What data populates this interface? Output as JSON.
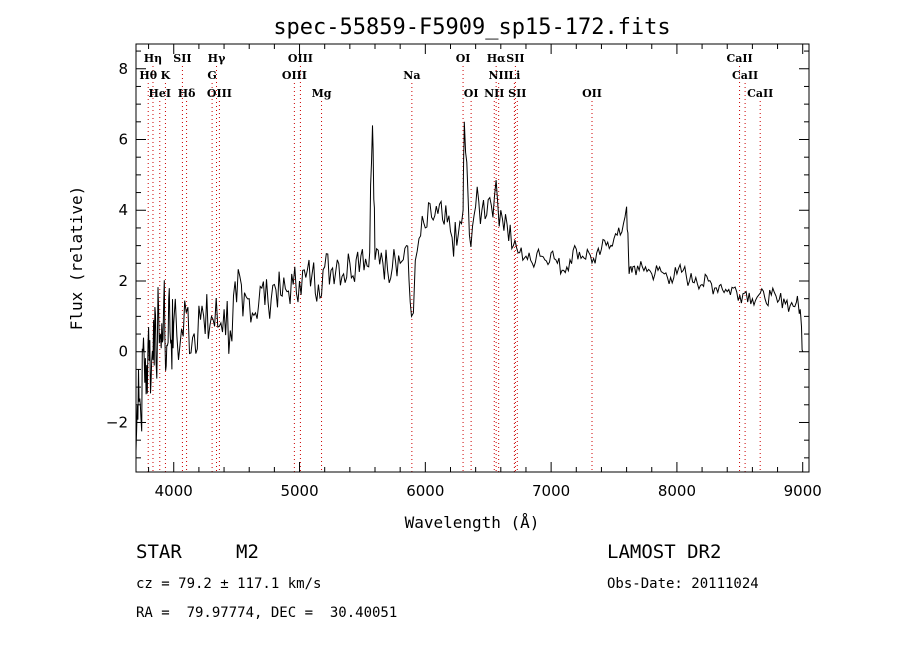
{
  "info": {
    "object_class": "STAR",
    "subclass": "M2",
    "survey": "LAMOST DR2",
    "redshift_line": "cz = 79.2 ± 117.1 km/s",
    "obs_date": "Obs-Date: 20111024",
    "coords": "RA =  79.97774, DEC =  30.40051"
  },
  "chart_data": {
    "type": "line",
    "title": "spec-55859-F5909_sp15-172.fits",
    "xlabel": "Wavelength (Å)",
    "ylabel": "Flux (relative)",
    "xlim": [
      3700,
      9050
    ],
    "ylim": [
      -3.4,
      8.7
    ],
    "xticks": [
      4000,
      5000,
      6000,
      7000,
      8000,
      9000
    ],
    "yticks": [
      -2,
      0,
      2,
      4,
      6,
      8
    ],
    "grid": false,
    "line_color": "#000000",
    "marker_color": "#cc0000",
    "spectrum": {
      "x": [
        3700,
        3720,
        3740,
        3760,
        3780,
        3800,
        3820,
        3840,
        3860,
        3880,
        3900,
        3920,
        3940,
        3960,
        3980,
        4000,
        4050,
        4100,
        4150,
        4200,
        4250,
        4300,
        4350,
        4400,
        4450,
        4500,
        4550,
        4600,
        4650,
        4700,
        4750,
        4800,
        4850,
        4900,
        4950,
        5000,
        5050,
        5100,
        5150,
        5200,
        5250,
        5300,
        5350,
        5400,
        5450,
        5500,
        5550,
        5580,
        5600,
        5650,
        5700,
        5750,
        5800,
        5850,
        5890,
        5950,
        6000,
        6050,
        6100,
        6150,
        6200,
        6250,
        6300,
        6310,
        6350,
        6400,
        6450,
        6500,
        6550,
        6600,
        6650,
        6700,
        6750,
        6800,
        6850,
        6900,
        6950,
        7000,
        7050,
        7100,
        7150,
        7200,
        7250,
        7300,
        7350,
        7400,
        7450,
        7500,
        7550,
        7600,
        7620,
        7650,
        7700,
        7750,
        7800,
        7850,
        7900,
        7950,
        8000,
        8050,
        8100,
        8150,
        8200,
        8250,
        8300,
        8350,
        8400,
        8450,
        8500,
        8550,
        8600,
        8650,
        8700,
        8750,
        8800,
        8850,
        8900,
        8950,
        8980,
        9000
      ],
      "y": [
        -2.8,
        -0.5,
        -1.9,
        0.4,
        -1.2,
        0.7,
        -0.8,
        0.9,
        -0.3,
        1.2,
        0.1,
        1.4,
        -0.4,
        1.5,
        0.3,
        0.8,
        0.2,
        1.1,
        0.4,
        1.3,
        0.5,
        1.0,
        0.7,
        1.2,
        0.6,
        1.4,
        1.0,
        1.5,
        1.1,
        1.8,
        1.4,
        1.9,
        1.6,
        1.7,
        1.9,
        2.0,
        2.1,
        2.2,
        1.9,
        2.4,
        2.3,
        2.6,
        2.2,
        2.5,
        2.6,
        2.9,
        2.4,
        6.4,
        2.6,
        2.8,
        2.3,
        2.9,
        2.5,
        3.0,
        1.0,
        3.2,
        3.5,
        3.8,
        3.9,
        3.6,
        3.4,
        3.0,
        4.0,
        6.5,
        3.3,
        4.1,
        4.0,
        4.3,
        4.4,
        4.0,
        3.6,
        3.0,
        2.8,
        2.7,
        2.5,
        2.9,
        2.6,
        2.8,
        2.5,
        2.3,
        2.6,
        2.9,
        2.7,
        2.8,
        2.5,
        2.9,
        3.1,
        3.2,
        3.3,
        4.1,
        2.2,
        2.4,
        2.3,
        2.4,
        2.2,
        2.3,
        2.2,
        2.1,
        2.2,
        2.3,
        2.0,
        2.1,
        1.9,
        2.0,
        1.8,
        1.9,
        1.7,
        1.8,
        1.6,
        1.7,
        1.5,
        1.6,
        1.5,
        1.6,
        1.4,
        1.5,
        1.3,
        1.4,
        1.2,
        0.0
      ]
    },
    "line_markers": [
      {
        "label": "Hη",
        "x": 3835,
        "row": 1
      },
      {
        "label": "Hθ",
        "x": 3797,
        "row": 2
      },
      {
        "label": "K",
        "x": 3934,
        "row": 2
      },
      {
        "label": "HeI",
        "x": 3889,
        "row": 3
      },
      {
        "label": "SII",
        "x": 4069,
        "row": 1
      },
      {
        "label": "Hδ",
        "x": 4102,
        "row": 3
      },
      {
        "label": "Hγ",
        "x": 4340,
        "row": 1
      },
      {
        "label": "G",
        "x": 4305,
        "row": 2
      },
      {
        "label": "OIII",
        "x": 4363,
        "row": 3
      },
      {
        "label": "OIII",
        "x": 5007,
        "row": 1
      },
      {
        "label": "OIII",
        "x": 4959,
        "row": 2
      },
      {
        "label": "Mg",
        "x": 5175,
        "row": 3
      },
      {
        "label": "Na",
        "x": 5893,
        "row": 2
      },
      {
        "label": "OI",
        "x": 6300,
        "row": 1
      },
      {
        "label": "OI",
        "x": 6364,
        "row": 3
      },
      {
        "label": "Hα",
        "x": 6563,
        "row": 1
      },
      {
        "label": "SII",
        "x": 6716,
        "row": 1
      },
      {
        "label": "NII",
        "x": 6583,
        "row": 2
      },
      {
        "label": "Li",
        "x": 6708,
        "row": 2
      },
      {
        "label": "NII",
        "x": 6548,
        "row": 3
      },
      {
        "label": "SII",
        "x": 6731,
        "row": 3
      },
      {
        "label": "OII",
        "x": 7325,
        "row": 3
      },
      {
        "label": "CaII",
        "x": 8498,
        "row": 1
      },
      {
        "label": "CaII",
        "x": 8542,
        "row": 2
      },
      {
        "label": "CaII",
        "x": 8662,
        "row": 3
      }
    ]
  }
}
